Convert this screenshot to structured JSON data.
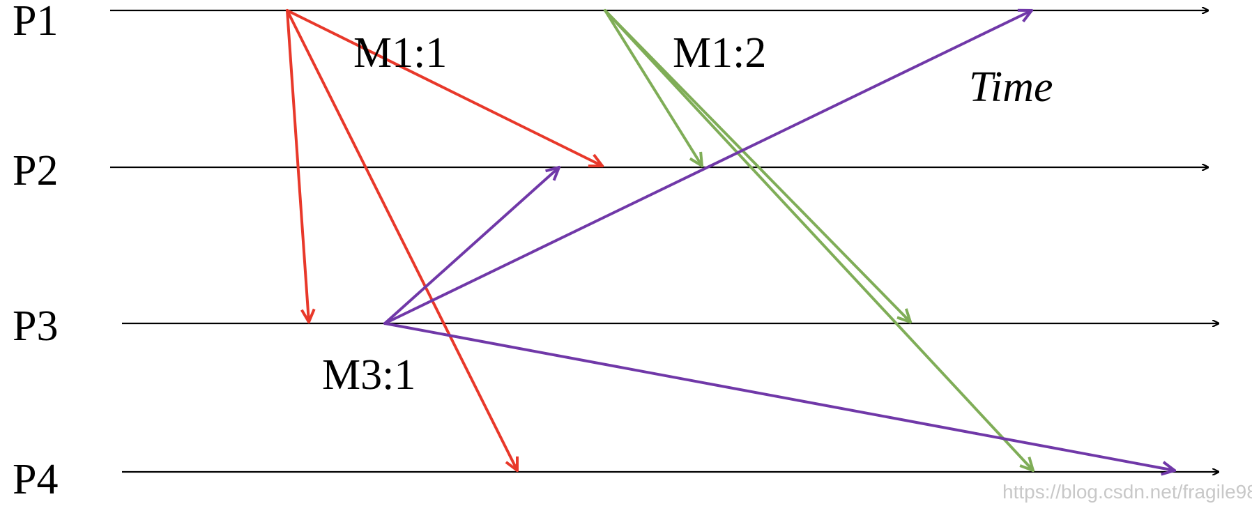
{
  "processes": [
    "P1",
    "P2",
    "P3",
    "P4"
  ],
  "message_labels": {
    "m1_1": "M1:1",
    "m1_2": "M1:2",
    "m3_1": "M3:1"
  },
  "time_label": "Time",
  "watermark": "https://blog.csdn.net/fragile98",
  "colors": {
    "timeline": "#000000",
    "m1_1": "#e8382a",
    "m1_2": "#7fad57",
    "m3_1": "#7038a8"
  },
  "messages": [
    {
      "id": "M1:1",
      "from": "P1",
      "to": "P2",
      "color": "red"
    },
    {
      "id": "M1:1",
      "from": "P1",
      "to": "P3",
      "color": "red"
    },
    {
      "id": "M1:1",
      "from": "P1",
      "to": "P4",
      "color": "red"
    },
    {
      "id": "M1:2",
      "from": "P1",
      "to": "P2",
      "color": "green"
    },
    {
      "id": "M1:2",
      "from": "P1",
      "to": "P3",
      "color": "green"
    },
    {
      "id": "M1:2",
      "from": "P1",
      "to": "P4",
      "color": "green"
    },
    {
      "id": "M3:1",
      "from": "P3",
      "to": "P2",
      "color": "purple"
    },
    {
      "id": "M3:1",
      "from": "P3",
      "to": "P1",
      "color": "purple"
    },
    {
      "id": "M3:1",
      "from": "P3",
      "to": "P4",
      "color": "purple"
    }
  ]
}
